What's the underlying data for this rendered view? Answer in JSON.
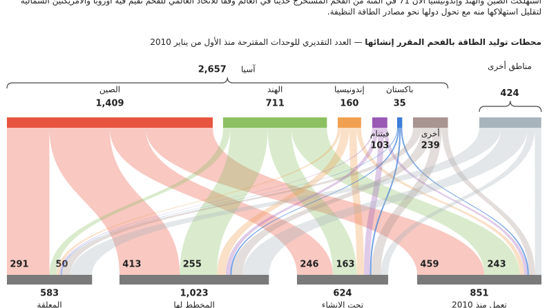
{
  "header": {
    "intro": [
      "استهلكت الصين والهند وإندونيسيا الآن 71 في المئة من الفحم المستخرج حديثاً في العالم وفقاً للاتحاد العالمي للفحم تقيم فيه أوروبا والأمريكتين الشمالية",
      "لتقليل استهلاكها منه مع تحول دولها نحو  مصادر الطاقة النظيفة."
    ]
  },
  "chart_data": {
    "type": "sankey",
    "title": "محطات توليد الطاقة بالفحم المقرر إنشائها",
    "subtitle": "— العدد التقديري للوحدات المقترحة منذ الأول من يناير 2010",
    "groups": {
      "names": [
        "آسيا",
        "مناطق أخرى"
      ],
      "values": [
        2657,
        424
      ],
      "value_labels": [
        "2,657",
        "424"
      ]
    },
    "sources": {
      "names": [
        "الصين",
        "الهند",
        "إندونيسيا",
        "فيتنام",
        "باكستان",
        "أخرى",
        null
      ],
      "values": [
        1409,
        711,
        160,
        103,
        35,
        239,
        424
      ],
      "value_labels": [
        "1,409",
        "711",
        "160",
        "103",
        "35",
        "239",
        "424"
      ],
      "colors": [
        "#e8553e",
        "#8dc063",
        "#f0a050",
        "#9b59b6",
        "#3b7dd8",
        "#a89490",
        "#a7b4bb"
      ]
    },
    "targets": {
      "names": [
        "المعلقة",
        "المخطط لها",
        "تحت الإنشاء",
        "تعمل منذ 2010"
      ],
      "values": [
        583,
        1023,
        624,
        851
      ],
      "value_labels": [
        "583",
        "1,023",
        "624",
        "851"
      ],
      "color": "#7a7a7a"
    },
    "flows": [
      [
        291,
        413,
        246,
        459
      ],
      [
        50,
        255,
        163,
        243
      ],
      [
        20,
        60,
        50,
        30
      ],
      [
        10,
        30,
        40,
        23
      ],
      [
        5,
        10,
        10,
        10
      ],
      [
        57,
        75,
        65,
        42
      ],
      [
        150,
        180,
        50,
        44
      ]
    ]
  }
}
